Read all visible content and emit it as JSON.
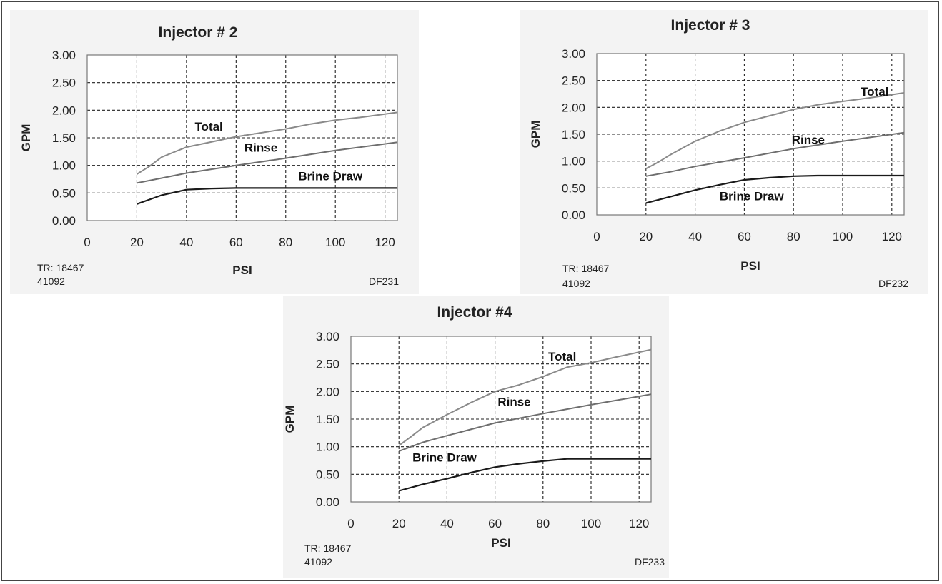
{
  "chart_data": [
    {
      "type": "line",
      "title": "Injector # 2",
      "xlabel": "PSI",
      "ylabel": "GPM",
      "xlim": [
        0,
        125
      ],
      "ylim": [
        0,
        3
      ],
      "x_ticks": [
        "0",
        "20",
        "40",
        "60",
        "80",
        "100",
        "120"
      ],
      "y_ticks": [
        "0.00",
        "0.50",
        "1.00",
        "1.50",
        "2.00",
        "2.50",
        "3.00"
      ],
      "grid": true,
      "series": [
        {
          "name": "Total",
          "color": "#8a8a8a",
          "points": [
            [
              20,
              0.84
            ],
            [
              25,
              0.98
            ],
            [
              30,
              1.15
            ],
            [
              40,
              1.33
            ],
            [
              60,
              1.52
            ],
            [
              80,
              1.66
            ],
            [
              90,
              1.75
            ],
            [
              100,
              1.82
            ],
            [
              110,
              1.87
            ],
            [
              125,
              1.96
            ]
          ]
        },
        {
          "name": "Rinse",
          "color": "#6e6e6e",
          "points": [
            [
              20,
              0.68
            ],
            [
              30,
              0.77
            ],
            [
              40,
              0.86
            ],
            [
              60,
              1.0
            ],
            [
              80,
              1.13
            ],
            [
              100,
              1.27
            ],
            [
              125,
              1.42
            ]
          ]
        },
        {
          "name": "Brine Draw",
          "color": "#1a1a1a",
          "points": [
            [
              20,
              0.3
            ],
            [
              25,
              0.38
            ],
            [
              30,
              0.46
            ],
            [
              40,
              0.56
            ],
            [
              50,
              0.58
            ],
            [
              60,
              0.59
            ],
            [
              80,
              0.59
            ],
            [
              100,
              0.59
            ],
            [
              125,
              0.59
            ]
          ]
        }
      ],
      "annotations": [
        {
          "text": "Total",
          "x": 49,
          "y": 1.63
        },
        {
          "text": "Rinse",
          "x": 70,
          "y": 1.25
        },
        {
          "text": "Brine Draw",
          "x": 98,
          "y": 0.73
        }
      ],
      "notes": {
        "tr": "TR: 18467",
        "code": "41092",
        "df": "DF231"
      }
    },
    {
      "type": "line",
      "title": "Injector # 3",
      "xlabel": "PSI",
      "ylabel": "GPM",
      "xlim": [
        0,
        125
      ],
      "ylim": [
        0,
        3
      ],
      "x_ticks": [
        "0",
        "20",
        "40",
        "60",
        "80",
        "100",
        "120"
      ],
      "y_ticks": [
        "0.00",
        "0.50",
        "1.00",
        "1.50",
        "2.00",
        "2.50",
        "3.00"
      ],
      "grid": true,
      "series": [
        {
          "name": "Total",
          "color": "#8a8a8a",
          "points": [
            [
              20,
              0.86
            ],
            [
              25,
              0.98
            ],
            [
              30,
              1.12
            ],
            [
              40,
              1.37
            ],
            [
              50,
              1.56
            ],
            [
              60,
              1.72
            ],
            [
              70,
              1.84
            ],
            [
              80,
              1.96
            ],
            [
              90,
              2.05
            ],
            [
              100,
              2.11
            ],
            [
              110,
              2.17
            ],
            [
              125,
              2.27
            ]
          ]
        },
        {
          "name": "Rinse",
          "color": "#6e6e6e",
          "points": [
            [
              20,
              0.72
            ],
            [
              30,
              0.8
            ],
            [
              40,
              0.9
            ],
            [
              60,
              1.06
            ],
            [
              80,
              1.23
            ],
            [
              100,
              1.37
            ],
            [
              125,
              1.53
            ]
          ]
        },
        {
          "name": "Brine Draw",
          "color": "#1a1a1a",
          "points": [
            [
              20,
              0.22
            ],
            [
              30,
              0.34
            ],
            [
              40,
              0.46
            ],
            [
              50,
              0.56
            ],
            [
              60,
              0.65
            ],
            [
              70,
              0.69
            ],
            [
              80,
              0.72
            ],
            [
              90,
              0.73
            ],
            [
              100,
              0.73
            ],
            [
              125,
              0.73
            ]
          ]
        }
      ],
      "annotations": [
        {
          "text": "Total",
          "x": 113,
          "y": 2.22
        },
        {
          "text": "Rinse",
          "x": 86,
          "y": 1.32
        },
        {
          "text": "Brine Draw",
          "x": 63,
          "y": 0.27
        }
      ],
      "notes": {
        "tr": "TR: 18467",
        "code": "41092",
        "df": "DF232"
      }
    },
    {
      "type": "line",
      "title": "Injector #4",
      "xlabel": "PSI",
      "ylabel": "GPM",
      "xlim": [
        0,
        125
      ],
      "ylim": [
        0,
        3
      ],
      "x_ticks": [
        "0",
        "20",
        "40",
        "60",
        "80",
        "100",
        "120"
      ],
      "y_ticks": [
        "0.00",
        "0.50",
        "1.00",
        "1.50",
        "2.00",
        "2.50",
        "3.00"
      ],
      "grid": true,
      "series": [
        {
          "name": "Total",
          "color": "#8a8a8a",
          "points": [
            [
              20,
              1.02
            ],
            [
              25,
              1.18
            ],
            [
              30,
              1.35
            ],
            [
              40,
              1.58
            ],
            [
              50,
              1.8
            ],
            [
              60,
              2.0
            ],
            [
              70,
              2.12
            ],
            [
              80,
              2.27
            ],
            [
              90,
              2.44
            ],
            [
              100,
              2.52
            ],
            [
              110,
              2.62
            ],
            [
              125,
              2.76
            ]
          ]
        },
        {
          "name": "Rinse",
          "color": "#6e6e6e",
          "points": [
            [
              20,
              0.92
            ],
            [
              30,
              1.08
            ],
            [
              40,
              1.2
            ],
            [
              60,
              1.43
            ],
            [
              80,
              1.6
            ],
            [
              100,
              1.76
            ],
            [
              125,
              1.95
            ]
          ]
        },
        {
          "name": "Brine Draw",
          "color": "#1a1a1a",
          "points": [
            [
              20,
              0.2
            ],
            [
              30,
              0.32
            ],
            [
              40,
              0.42
            ],
            [
              50,
              0.53
            ],
            [
              60,
              0.63
            ],
            [
              70,
              0.69
            ],
            [
              80,
              0.74
            ],
            [
              90,
              0.78
            ],
            [
              100,
              0.78
            ],
            [
              125,
              0.78
            ]
          ]
        }
      ],
      "annotations": [
        {
          "text": "Total",
          "x": 88,
          "y": 2.56
        },
        {
          "text": "Rinse",
          "x": 68,
          "y": 1.74
        },
        {
          "text": "Brine Draw",
          "x": 39,
          "y": 0.73
        }
      ],
      "notes": {
        "tr": "TR: 18467",
        "code": "41092",
        "df": "DF233"
      }
    }
  ]
}
